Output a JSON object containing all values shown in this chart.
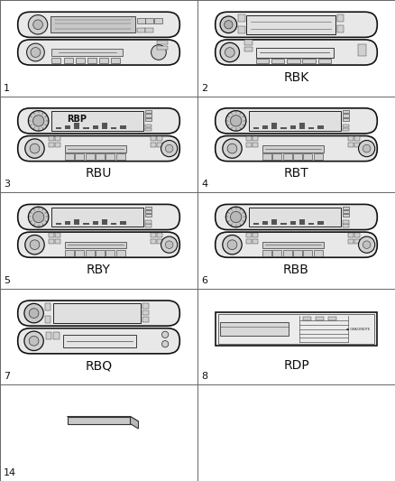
{
  "background_color": "#ffffff",
  "grid_color": "#aaaaaa",
  "cells": [
    {
      "row": 0,
      "col": 0,
      "item_num": "1",
      "label": "",
      "type": "radio_1"
    },
    {
      "row": 0,
      "col": 1,
      "item_num": "2",
      "label": "RBK",
      "type": "radio_rbk"
    },
    {
      "row": 1,
      "col": 0,
      "item_num": "3",
      "label": "RBU",
      "type": "radio_rbp"
    },
    {
      "row": 1,
      "col": 1,
      "item_num": "4",
      "label": "RBT",
      "type": "radio_rbt"
    },
    {
      "row": 2,
      "col": 0,
      "item_num": "5",
      "label": "RBY",
      "type": "radio_rby"
    },
    {
      "row": 2,
      "col": 1,
      "item_num": "6",
      "label": "RBB",
      "type": "radio_rbb"
    },
    {
      "row": 3,
      "col": 0,
      "item_num": "7",
      "label": "RBQ",
      "type": "radio_rbq"
    },
    {
      "row": 3,
      "col": 1,
      "item_num": "8",
      "label": "RDP",
      "type": "radio_rdp"
    },
    {
      "row": 4,
      "col": 0,
      "item_num": "14",
      "label": "",
      "type": "box_item"
    }
  ],
  "cols": 2,
  "rows": 5,
  "label_fontsize": 10,
  "num_fontsize": 8,
  "fig_width": 4.38,
  "fig_height": 5.33
}
